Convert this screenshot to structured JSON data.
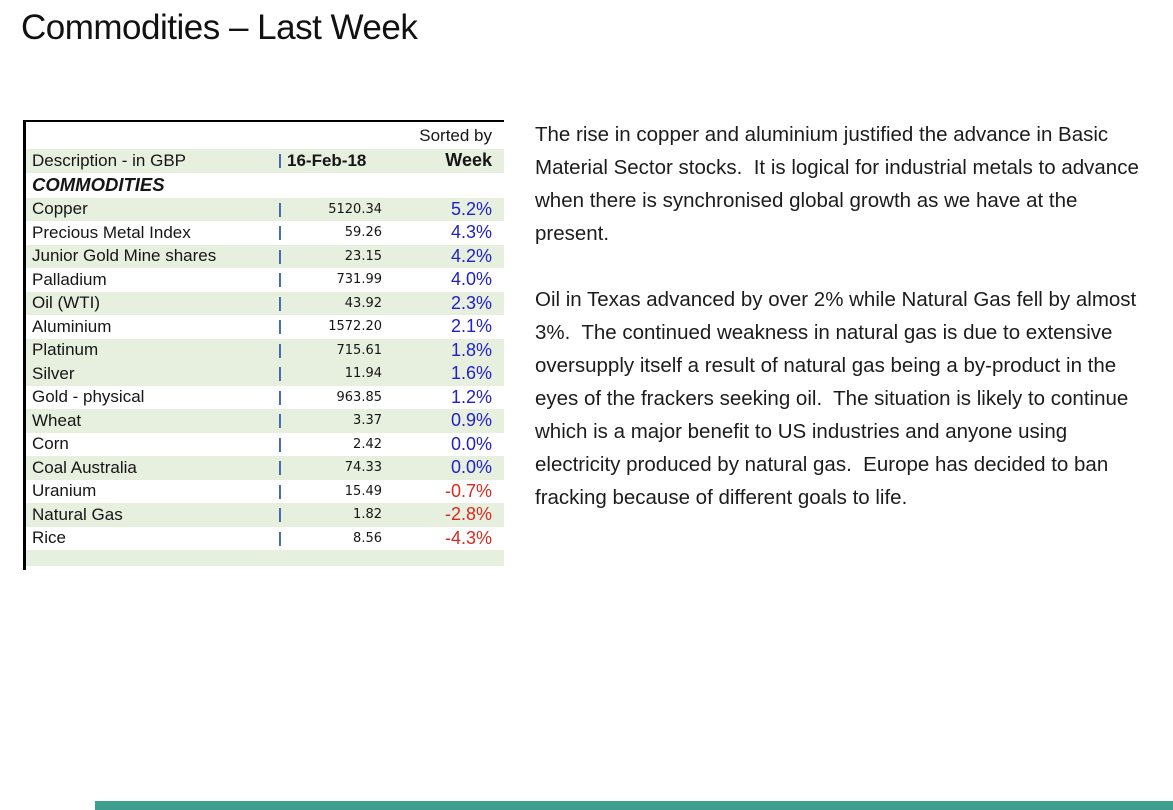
{
  "slide": {
    "title": "Commodities – Last Week"
  },
  "table": {
    "sorted_by_label": "Sorted by",
    "separator": "|",
    "header": {
      "description": "Description - in GBP",
      "date": "16-Feb-18",
      "week": "Week"
    },
    "section_label": "COMMODITIES",
    "rows": [
      {
        "name": "Copper",
        "value": "5120.34",
        "week": "5.2%",
        "shaded": true
      },
      {
        "name": "Precious Metal Index",
        "value": "59.26",
        "week": "4.3%",
        "shaded": false
      },
      {
        "name": "Junior Gold Mine shares",
        "value": "23.15",
        "week": "4.2%",
        "shaded": true
      },
      {
        "name": "Palladium",
        "value": "731.99",
        "week": "4.0%",
        "shaded": false
      },
      {
        "name": "Oil (WTI)",
        "value": "43.92",
        "week": "2.3%",
        "shaded": true
      },
      {
        "name": "Aluminium",
        "value": "1572.20",
        "week": "2.1%",
        "shaded": false
      },
      {
        "name": "Platinum",
        "value": "715.61",
        "week": "1.8%",
        "shaded": true
      },
      {
        "name": "Silver",
        "value": "11.94",
        "week": "1.6%",
        "shaded": true
      },
      {
        "name": "Gold - physical",
        "value": "963.85",
        "week": "1.2%",
        "shaded": false
      },
      {
        "name": "Wheat",
        "value": "3.37",
        "week": "0.9%",
        "shaded": true
      },
      {
        "name": "Corn",
        "value": "2.42",
        "week": "0.0%",
        "shaded": false
      },
      {
        "name": "Coal Australia",
        "value": "74.33",
        "week": "0.0%",
        "shaded": true
      },
      {
        "name": "Uranium",
        "value": "15.49",
        "week": "-0.7%",
        "shaded": false
      },
      {
        "name": "Natural Gas",
        "value": "1.82",
        "week": "-2.8%",
        "shaded": true
      },
      {
        "name": "Rice",
        "value": "8.56",
        "week": "-4.3%",
        "shaded": false
      }
    ]
  },
  "commentary": {
    "paragraphs": [
      "The rise in copper and aluminium justified the advance in Basic Material Sector stocks.  It is logical for industrial metals to advance when there is synchronised global growth as we have at the present.",
      "Oil in Texas advanced by over 2% while Natural Gas fell by almost 3%.  The continued weakness in natural gas is due to extensive oversupply itself a result of natural gas being a by-product in the eyes of the frackers seeking oil.  The situation is likely to continue which is a major benefit to US industries and anyone using electricity produced by natural gas.  Europe has decided to ban fracking because of different goals to life."
    ]
  },
  "colors": {
    "band_green": "#E7EFDF",
    "positive_blue": "#2222C4",
    "negative_red": "#D62B20",
    "separator_blue": "#3E68B0",
    "footer_teal": "#3F9D8D"
  }
}
